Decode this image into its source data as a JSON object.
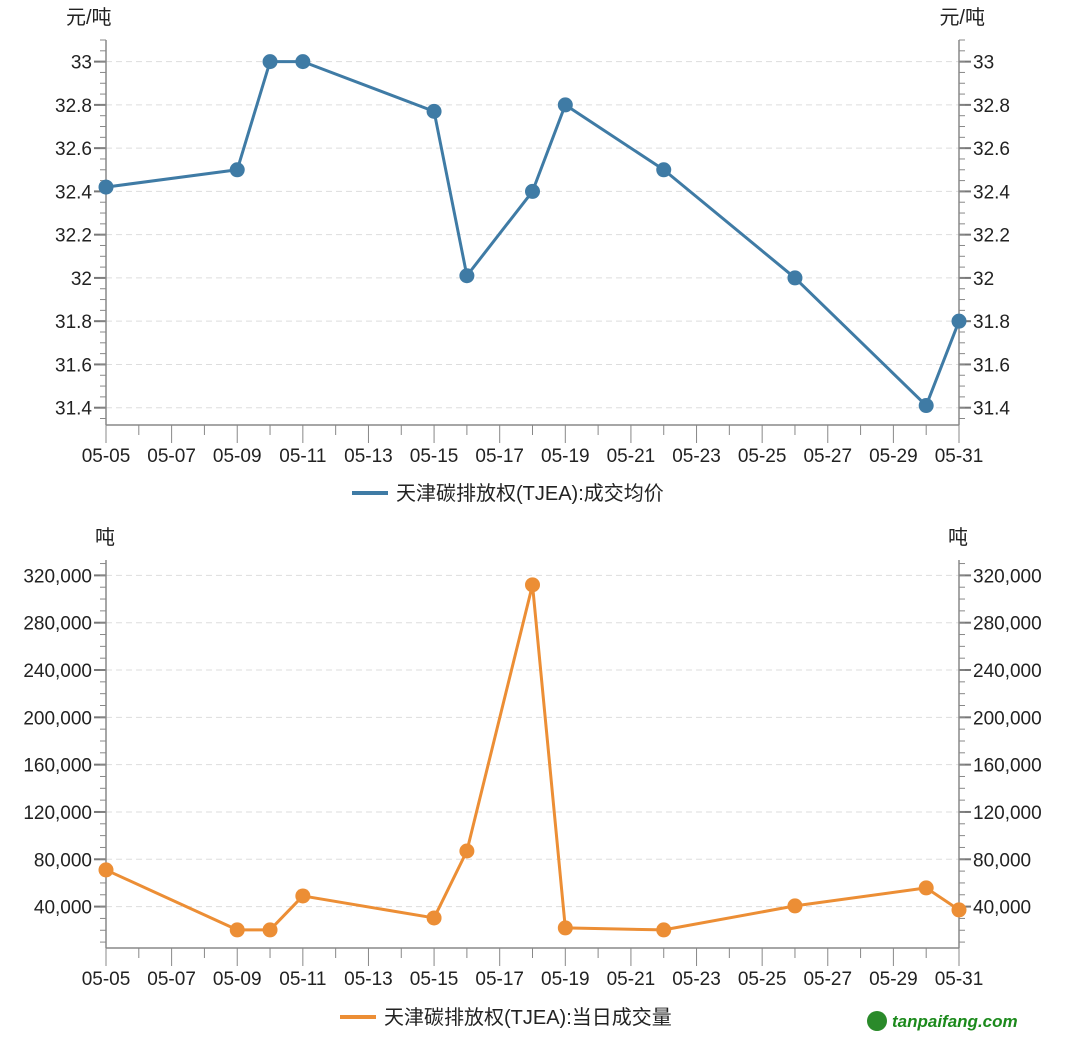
{
  "chart_data": [
    {
      "type": "line",
      "title": "",
      "ylabel_left": "元/吨",
      "ylabel_right": "元/吨",
      "x_ticks": [
        "05-05",
        "05-07",
        "05-09",
        "05-11",
        "05-13",
        "05-15",
        "05-17",
        "05-19",
        "05-21",
        "05-23",
        "05-25",
        "05-27",
        "05-29",
        "05-31"
      ],
      "y_ticks": [
        "31.4",
        "31.6",
        "31.8",
        "32",
        "32.2",
        "32.4",
        "32.6",
        "32.8",
        "33"
      ],
      "ylim": [
        31.32,
        33.1
      ],
      "legend": "天津碳排放权(TJEA):成交均价",
      "legend_position": "bottom",
      "color": "#3f7ba5",
      "x": [
        5,
        9,
        10,
        11,
        15,
        16,
        18,
        19,
        22,
        26,
        30,
        31
      ],
      "values": [
        32.42,
        32.5,
        33,
        33,
        32.77,
        32.01,
        32.4,
        32.8,
        32.5,
        32.0,
        31.41,
        31.8
      ]
    },
    {
      "type": "line",
      "title": "",
      "ylabel_left": "吨",
      "ylabel_right": "吨",
      "x_ticks": [
        "05-05",
        "05-07",
        "05-09",
        "05-11",
        "05-13",
        "05-15",
        "05-17",
        "05-19",
        "05-21",
        "05-23",
        "05-25",
        "05-27",
        "05-29",
        "05-31"
      ],
      "y_ticks": [
        "40,000",
        "80,000",
        "120,000",
        "160,000",
        "200,000",
        "240,000",
        "280,000",
        "320,000"
      ],
      "ylim": [
        5000,
        333000
      ],
      "legend": "天津碳排放权(TJEA):当日成交量",
      "legend_position": "bottom",
      "color": "#ec8e35",
      "x": [
        5,
        9,
        10,
        11,
        15,
        16,
        18,
        19,
        22,
        26,
        30,
        31
      ],
      "values": [
        71000,
        20300,
        20300,
        49000,
        30400,
        87000,
        312000,
        22000,
        20300,
        40600,
        55800,
        37200
      ]
    }
  ],
  "watermark": "tanpaifang.com"
}
